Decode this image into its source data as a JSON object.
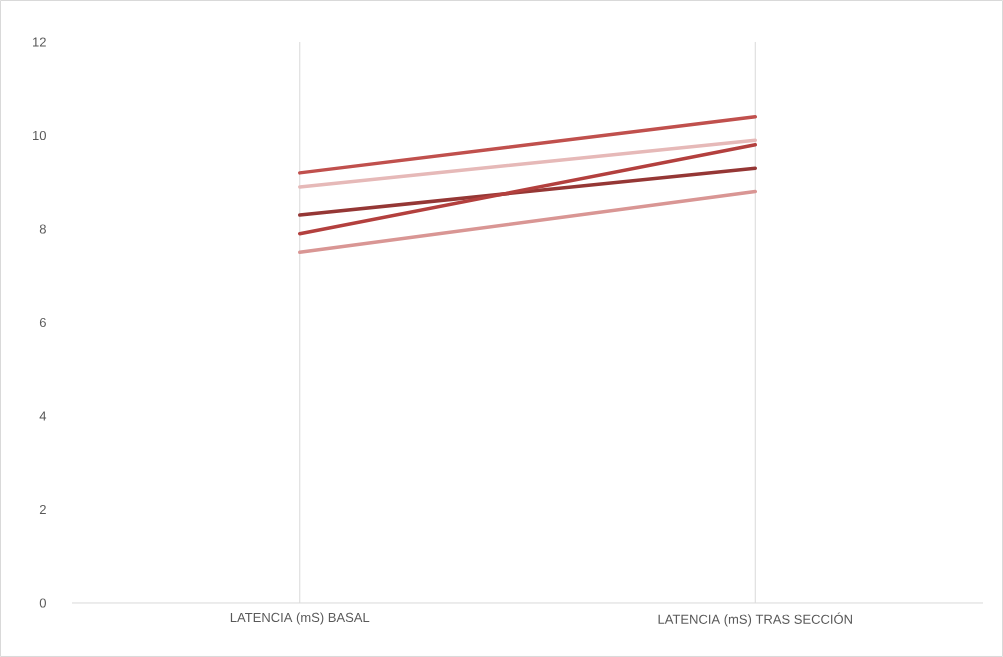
{
  "chart_data": {
    "type": "line",
    "categories": [
      "LATENCIA (mS) BASAL",
      "LATENCIA (mS) TRAS SECCIÓN"
    ],
    "series": [
      {
        "color": "#c0504d",
        "values": [
          9.2,
          10.4
        ]
      },
      {
        "color": "#e6b9b8",
        "values": [
          8.9,
          9.9
        ]
      },
      {
        "color": "#953735",
        "values": [
          8.3,
          9.3
        ]
      },
      {
        "color": "#b3403e",
        "values": [
          7.9,
          9.8
        ]
      },
      {
        "color": "#d99694",
        "values": [
          7.5,
          8.8
        ]
      }
    ],
    "ylim": [
      0,
      12
    ],
    "yticks": [
      0,
      2,
      4,
      6,
      8,
      10,
      12
    ],
    "grid": "x",
    "marker": "none",
    "line_style": "solid"
  }
}
